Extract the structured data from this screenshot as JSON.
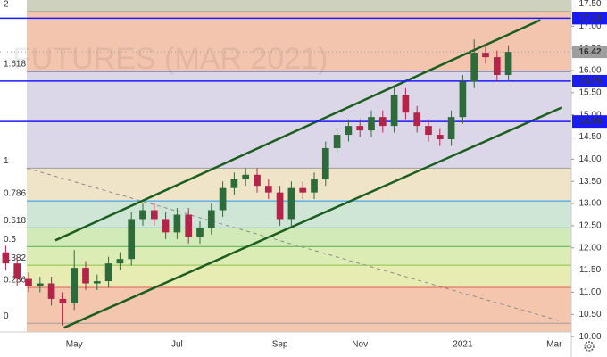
{
  "chart_data": {
    "type": "candlestick",
    "watermark": "FUTURES (MAR 2021)",
    "categories": [
      null,
      null,
      null,
      null,
      null,
      null,
      "May",
      null,
      null,
      null,
      null,
      null,
      null,
      null,
      null,
      "Jul",
      null,
      null,
      null,
      null,
      null,
      null,
      null,
      null,
      "Sep",
      null,
      null,
      null,
      null,
      null,
      null,
      "Nov",
      null,
      null,
      null,
      null,
      null,
      null,
      null,
      null,
      "2021",
      null,
      null,
      null,
      null,
      null,
      null,
      null,
      "Mar",
      null
    ],
    "open": [
      11.9,
      11.65,
      11.3,
      11.15,
      11.2,
      10.85,
      10.75,
      11.55,
      11.2,
      11.25,
      11.65,
      11.75,
      12.65,
      12.85,
      12.65,
      12.35,
      12.75,
      12.25,
      12.45,
      12.85,
      13.35,
      13.55,
      13.65,
      13.4,
      13.25,
      12.65,
      13.35,
      13.25,
      13.55,
      14.25,
      14.55,
      14.75,
      14.65,
      14.95,
      14.75,
      15.45,
      15.05,
      14.75,
      14.55,
      14.45,
      14.95,
      15.75,
      16.4,
      16.3,
      15.9,
      null,
      null,
      null,
      null,
      null
    ],
    "high": [
      12.05,
      11.8,
      11.45,
      11.35,
      11.35,
      11.0,
      11.95,
      11.7,
      11.4,
      11.8,
      11.9,
      12.8,
      13.0,
      13.0,
      12.8,
      12.9,
      12.9,
      12.6,
      13.0,
      13.5,
      13.7,
      13.8,
      13.8,
      13.55,
      13.4,
      13.5,
      13.5,
      13.7,
      14.4,
      14.7,
      14.9,
      14.9,
      15.1,
      15.1,
      15.65,
      15.6,
      15.2,
      14.9,
      14.7,
      15.1,
      15.9,
      16.7,
      16.6,
      16.45,
      16.57,
      null,
      null,
      null,
      null,
      null
    ],
    "low": [
      11.5,
      11.15,
      11.0,
      11.0,
      10.7,
      10.25,
      10.6,
      11.05,
      11.05,
      11.1,
      11.5,
      11.6,
      12.5,
      12.5,
      12.2,
      12.2,
      12.1,
      12.1,
      12.3,
      12.7,
      13.2,
      13.4,
      13.25,
      13.1,
      12.5,
      12.5,
      13.1,
      13.1,
      13.4,
      14.1,
      14.4,
      14.5,
      14.5,
      14.6,
      14.6,
      14.9,
      14.6,
      14.4,
      14.3,
      14.3,
      14.8,
      15.6,
      16.15,
      15.75,
      15.75,
      null,
      null,
      null,
      null,
      null
    ],
    "close": [
      11.65,
      11.3,
      11.15,
      11.2,
      10.85,
      10.75,
      11.55,
      11.2,
      11.25,
      11.65,
      11.75,
      12.65,
      12.85,
      12.65,
      12.35,
      12.75,
      12.25,
      12.45,
      12.85,
      13.35,
      13.55,
      13.65,
      13.4,
      13.25,
      12.65,
      13.35,
      13.25,
      13.55,
      14.25,
      14.55,
      14.75,
      14.65,
      14.95,
      14.75,
      15.45,
      15.05,
      14.75,
      14.55,
      14.45,
      14.95,
      15.75,
      16.4,
      16.3,
      15.9,
      16.42,
      null,
      null,
      null,
      null,
      null
    ],
    "up_color": "#2e6b3a",
    "down_color": "#b3234a",
    "ylim": [
      9.54,
      17.59
    ],
    "yticks": [
      {
        "value": 10,
        "label": "10.00"
      },
      {
        "value": 10.5,
        "label": "10.50"
      },
      {
        "value": 11,
        "label": "11.00"
      },
      {
        "value": 11.5,
        "label": "11.50"
      },
      {
        "value": 12,
        "label": "12.00"
      },
      {
        "value": 12.5,
        "label": "12.50"
      },
      {
        "value": 13,
        "label": "13.00"
      },
      {
        "value": 13.5,
        "label": "13.50"
      },
      {
        "value": 14,
        "label": "14.00"
      },
      {
        "value": 14.5,
        "label": "14.50"
      },
      {
        "value": 15,
        "label": "15.00"
      },
      {
        "value": 15.5,
        "label": "15.50"
      },
      {
        "value": 16,
        "label": "16.00"
      },
      {
        "value": 16.5,
        "label": "16.50"
      },
      {
        "value": 17,
        "label": "17.00"
      },
      {
        "value": 17.5,
        "label": "17.50"
      }
    ],
    "fib_levels": [
      {
        "label": "0",
        "value": 10.3,
        "color": "#9e9e9e"
      },
      {
        "label": "0.236",
        "value": 11.11,
        "color": "#e35b5b"
      },
      {
        "label": "0.382",
        "value": 11.61,
        "color": "#8bc34a"
      },
      {
        "label": "0.5",
        "value": 12.03,
        "color": "#4caf50"
      },
      {
        "label": "0.618",
        "value": 12.45,
        "color": "#26a69a"
      },
      {
        "label": "0.786",
        "value": 13.06,
        "color": "#2196f3"
      },
      {
        "label": "1",
        "value": 13.8,
        "color": "#9e9e9e"
      },
      {
        "label": "1.618",
        "value": 15.98,
        "color": "#3f51b5"
      },
      {
        "label": "2",
        "value": 17.33,
        "color": "#9e9e9e"
      }
    ],
    "fib_fills": [
      "#f5c6ae",
      "#f5c6ae",
      "#e6ecb2",
      "#dbecb4",
      "#d2eab8",
      "#cfe6d6",
      "#efe4c8",
      "#dcd7e8",
      "#f4c5ae",
      "#cdd1bd"
    ],
    "price_lines": [
      {
        "value": 17.18,
        "color": "#1a1aff"
      },
      {
        "value": 15.76,
        "color": "#1a1aff"
      },
      {
        "value": 14.85,
        "color": "#1a1aff"
      }
    ],
    "last_price": {
      "value": 16.42,
      "color": "#9e9e9e"
    },
    "trend_lines": [
      {
        "x": [
          4.34,
          46.8
        ],
        "y": [
          12.17,
          17.14
        ],
        "color": "#1b5e20",
        "dashed": false
      },
      {
        "x": [
          5.1,
          48.7
        ],
        "y": [
          10.2,
          15.17
        ],
        "color": "#1b5e20",
        "dashed": false
      },
      {
        "x": [
          1.84,
          48.7
        ],
        "y": [
          13.8,
          10.34
        ],
        "color": "#8c8c8c",
        "dashed": true
      }
    ]
  }
}
